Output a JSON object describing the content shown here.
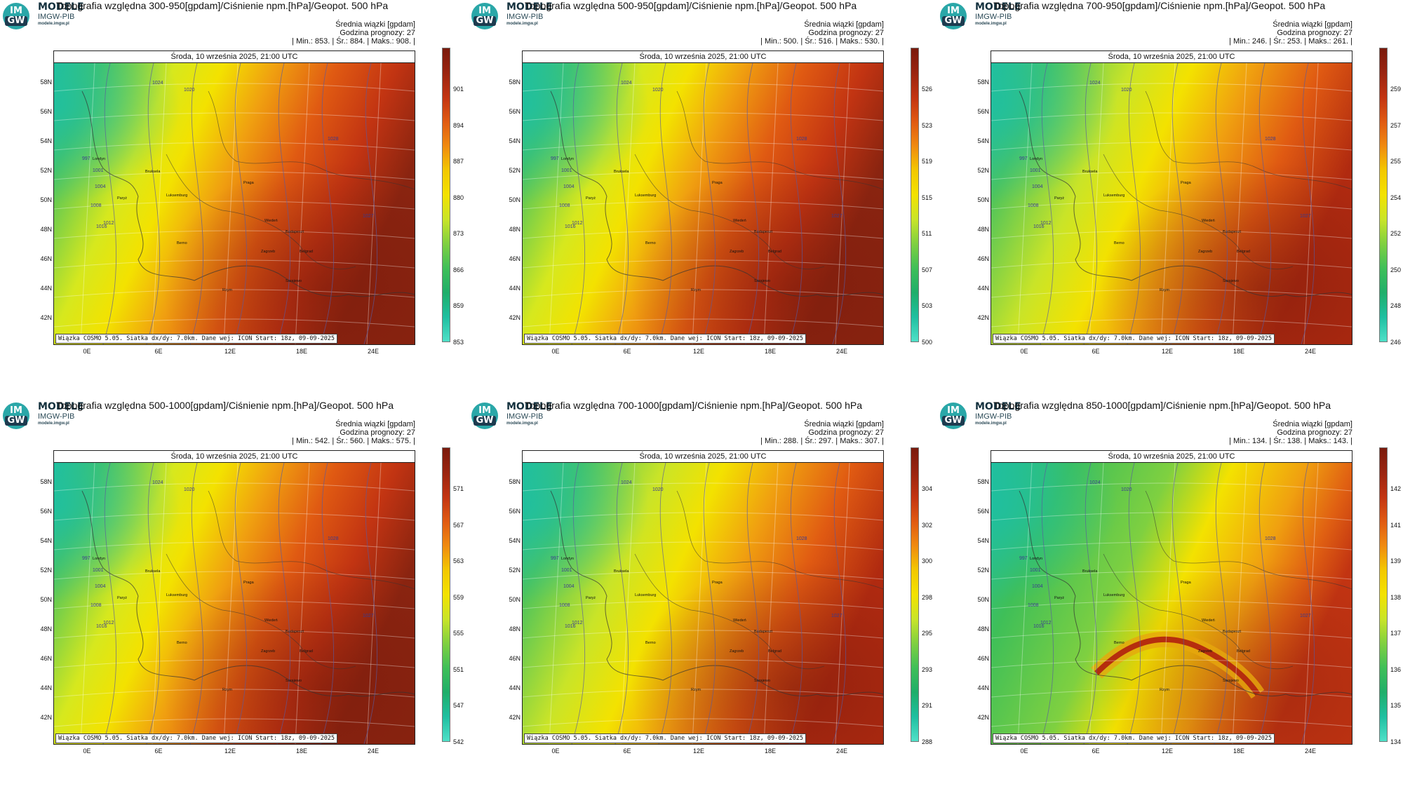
{
  "brand": {
    "logo_top": "IM",
    "logo_bottom": "GW",
    "name": "MODELE",
    "org": "IMGW-PIB",
    "site": "modele.imgw.pl"
  },
  "common": {
    "legend_label": "Średnia wiązki [gpdam]",
    "forecast_hour": "Godzina prognozy: 27",
    "date_label": "Środa, 10 września 2025, 21:00 UTC",
    "footer": "Wiązka COSMO 5.05. Siatka dx/dy: 7.0km. Dane wej: ICON Start: 18z, 09-09-2025",
    "lat_labels": [
      "58N",
      "56N",
      "54N",
      "52N",
      "50N",
      "48N",
      "46N",
      "44N",
      "42N"
    ],
    "lon_labels": [
      "0E",
      "6E",
      "12E",
      "18E",
      "24E"
    ],
    "map_labels": [
      "Londyn",
      "Paryż",
      "Bruksela",
      "Luksemburg",
      "Berno",
      "Praga",
      "Wiedeń",
      "Budapeszt",
      "Zagrzeb",
      "Belgrad",
      "Rzym",
      "Sarajewo"
    ],
    "isobar_values": [
      "1024",
      "1020",
      "1016",
      "1012",
      "1008",
      "1004",
      "1001",
      "997",
      "1027",
      "1028"
    ],
    "colors": {
      "cold": "#1fbfa0",
      "green": "#4fc45a",
      "yellow": "#f2e400",
      "orange": "#f08a10",
      "red": "#d13a10",
      "dark": "#6e1a0a"
    }
  },
  "panels": [
    {
      "title": "Topografia względna 300-950[gpdam]/Ciśnienie npm.[hPa]/Geopot. 500 hPa",
      "stats": "| Min.:   853. | Śr.:   884. | Maks.:   908. |",
      "ticks": [
        "901",
        "894",
        "887",
        "880",
        "873",
        "866",
        "859",
        "853"
      ],
      "pattern": "warm-east"
    },
    {
      "title": "Topografia względna 500-950[gpdam]/Ciśnienie npm.[hPa]/Geopot. 500 hPa",
      "stats": "| Min.:   500. | Śr.:   516. | Maks.:   530. |",
      "ticks": [
        "526",
        "523",
        "519",
        "515",
        "511",
        "507",
        "503",
        "500"
      ],
      "pattern": "warm-east"
    },
    {
      "title": "Topografia względna 700-950[gpdam]/Ciśnienie npm.[hPa]/Geopot. 500 hPa",
      "stats": "| Min.:   246. | Śr.:   253. | Maks.:   261. |",
      "ticks": [
        "259",
        "257",
        "255",
        "254",
        "252",
        "250",
        "248",
        "246"
      ],
      "pattern": "warm-south"
    },
    {
      "title": "Topografia względna 500-1000[gpdam]/Ciśnienie npm.[hPa]/Geopot. 500 hPa",
      "stats": "| Min.:   542. | Śr.:   560. | Maks.:   575. |",
      "ticks": [
        "571",
        "567",
        "563",
        "559",
        "555",
        "551",
        "547",
        "542"
      ],
      "pattern": "warm-east"
    },
    {
      "title": "Topografia względna 700-1000[gpdam]/Ciśnienie npm.[hPa]/Geopot. 500 hPa",
      "stats": "| Min.:   288. | Śr.:   297. | Maks.:   307. |",
      "ticks": [
        "304",
        "302",
        "300",
        "298",
        "295",
        "293",
        "291",
        "288"
      ],
      "pattern": "warm-south"
    },
    {
      "title": "Topografia względna 850-1000[gpdam]/Ciśnienie npm.[hPa]/Geopot. 500 hPa",
      "stats": "| Min.:   134. | Śr.:   138. | Maks.:   143. |",
      "ticks": [
        "142",
        "141",
        "139",
        "138",
        "137",
        "136",
        "135",
        "134"
      ],
      "pattern": "alps"
    }
  ]
}
